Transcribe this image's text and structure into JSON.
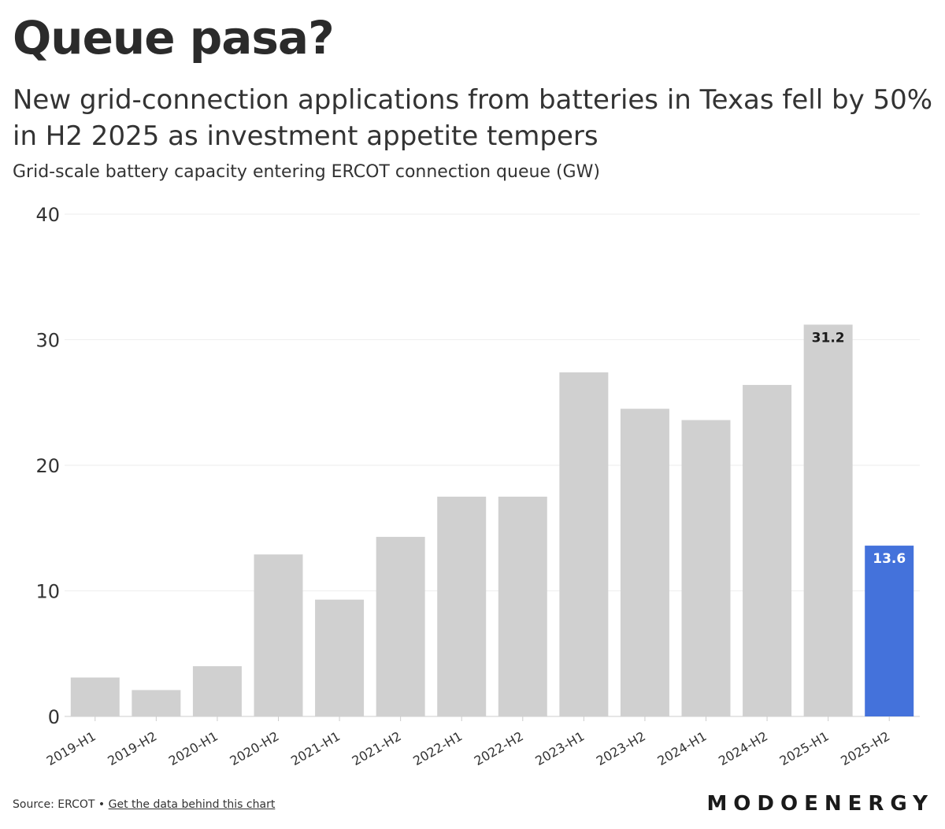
{
  "header": {
    "title": "Queue pasa?",
    "subtitle": "New grid-connection applications from batteries in Texas fell by 50% in H2 2025 as investment appetite tempers",
    "unit_label": "Grid-scale battery capacity entering ERCOT connection queue (GW)"
  },
  "chart_data": {
    "type": "bar",
    "categories": [
      "2019-H1",
      "2019-H2",
      "2020-H1",
      "2020-H2",
      "2021-H1",
      "2021-H2",
      "2022-H1",
      "2022-H2",
      "2023-H1",
      "2023-H2",
      "2024-H1",
      "2024-H2",
      "2025-H1",
      "2025-H2"
    ],
    "values": [
      3.1,
      2.1,
      4.0,
      12.9,
      9.3,
      14.3,
      17.5,
      17.5,
      27.4,
      24.5,
      23.6,
      26.4,
      31.2,
      13.6
    ],
    "data_labels": [
      {
        "category": "2025-H1",
        "text": "31.2"
      },
      {
        "category": "2025-H2",
        "text": "13.6"
      }
    ],
    "highlight_category": "2025-H2",
    "ylim": [
      0,
      40
    ],
    "yticks": [
      0,
      10,
      20,
      30,
      40
    ],
    "grid": true,
    "colors": {
      "bar": "#d0d0d0",
      "highlight": "#4472db",
      "gridline": "#eeeeee",
      "axis": "#cccccc",
      "tick_text": "#333333"
    }
  },
  "footer": {
    "source_text": "Source: ERCOT •",
    "link_text": "Get the data behind this chart"
  },
  "brand": {
    "logo_text": "MODOENERGY"
  }
}
